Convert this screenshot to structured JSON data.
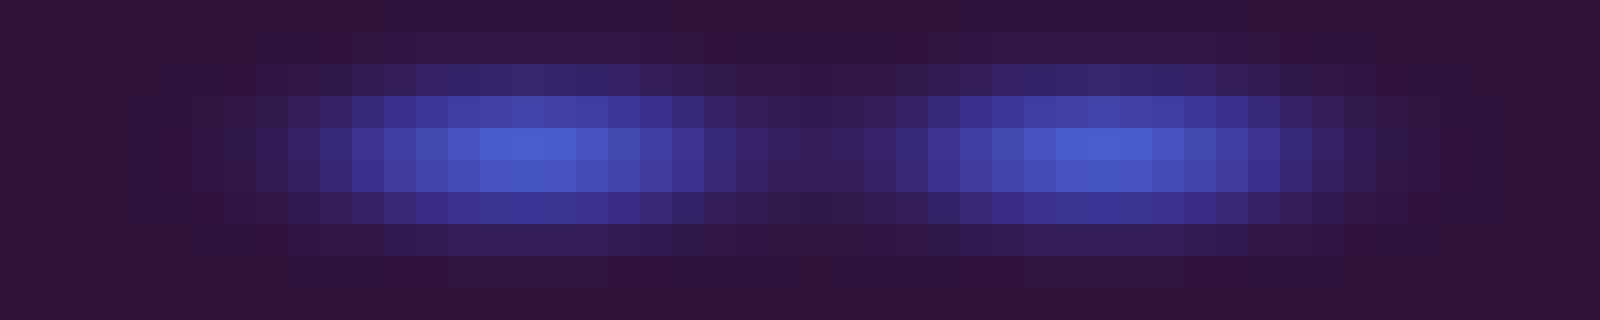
{
  "chart_data": {
    "type": "heatmap",
    "tick_labels": false,
    "zlim": [
      0,
      10
    ],
    "cells": [
      [
        0,
        0,
        0,
        0,
        0,
        0,
        0,
        0,
        0,
        0,
        0,
        0,
        0.1,
        0.1,
        0.1,
        0.1,
        0.1,
        0.1,
        0.1,
        0.1,
        0.1,
        0,
        0,
        0,
        0,
        0,
        0,
        0,
        0,
        0,
        0.1,
        0.1,
        0.1,
        0.1,
        0.1,
        0.1,
        0.1,
        0.1,
        0.1,
        0,
        0,
        0,
        0,
        0,
        0,
        0,
        0,
        0,
        0,
        0
      ],
      [
        0,
        0,
        0,
        0,
        0,
        0,
        0,
        0,
        0.1,
        0.1,
        0.2,
        0.3,
        0.4,
        0.5,
        0.5,
        0.6,
        0.6,
        0.6,
        0.5,
        0.5,
        0.4,
        0.3,
        0.2,
        0.1,
        0.1,
        0.1,
        0.1,
        0.1,
        0.2,
        0.3,
        0.4,
        0.5,
        0.5,
        0.6,
        0.6,
        0.6,
        0.5,
        0.5,
        0.4,
        0.3,
        0.2,
        0.1,
        0.1,
        0,
        0,
        0,
        0,
        0,
        0,
        0
      ],
      [
        0,
        0,
        0,
        0,
        0,
        0.1,
        0.1,
        0.2,
        0.4,
        0.6,
        0.8,
        1.2,
        1.6,
        2.0,
        2.3,
        2.5,
        2.6,
        2.5,
        2.3,
        2.0,
        1.6,
        1.2,
        0.9,
        0.6,
        0.5,
        0.4,
        0.5,
        0.6,
        0.9,
        1.2,
        1.6,
        2.0,
        2.3,
        2.5,
        2.6,
        2.5,
        2.3,
        2.0,
        1.6,
        1.2,
        0.8,
        0.6,
        0.4,
        0.2,
        0.1,
        0.1,
        0,
        0,
        0,
        0
      ],
      [
        0,
        0,
        0,
        0,
        0.1,
        0.1,
        0.3,
        0.5,
        0.9,
        1.4,
        2.1,
        3.0,
        4.0,
        4.9,
        5.7,
        6.3,
        6.5,
        6.3,
        5.7,
        4.9,
        4.0,
        3.1,
        2.1,
        1.6,
        1.2,
        1.0,
        1.2,
        1.6,
        2.1,
        3.1,
        4.0,
        4.9,
        5.7,
        6.3,
        6.5,
        6.3,
        5.7,
        4.9,
        4.0,
        3.0,
        2.1,
        1.4,
        0.9,
        0.5,
        0.3,
        0.1,
        0.1,
        0,
        0,
        0
      ],
      [
        0,
        0,
        0,
        0,
        0.1,
        0.2,
        0.4,
        0.8,
        1.3,
        2.2,
        3.1,
        4.5,
        6.0,
        7.3,
        8.6,
        9.5,
        9.8,
        9.5,
        8.6,
        7.3,
        6.0,
        4.6,
        3.2,
        2.4,
        1.8,
        1.6,
        1.8,
        2.4,
        3.2,
        4.6,
        6.0,
        7.3,
        8.6,
        9.5,
        9.8,
        9.5,
        8.6,
        7.3,
        6.0,
        4.5,
        3.1,
        2.2,
        1.3,
        0.8,
        0.4,
        0.2,
        0.1,
        0,
        0,
        0
      ],
      [
        0,
        0,
        0,
        0,
        0.1,
        0.2,
        0.4,
        0.7,
        1.2,
        1.9,
        2.8,
        4.0,
        5.4,
        6.6,
        7.7,
        8.5,
        8.8,
        8.5,
        7.7,
        6.6,
        5.4,
        4.1,
        2.9,
        2.1,
        1.6,
        1.4,
        1.6,
        2.1,
        2.9,
        4.1,
        5.4,
        6.6,
        7.7,
        8.5,
        8.8,
        8.5,
        7.7,
        6.6,
        5.4,
        4.0,
        2.8,
        1.9,
        1.2,
        0.7,
        0.4,
        0.2,
        0.1,
        0,
        0,
        0
      ],
      [
        0,
        0,
        0,
        0,
        0.1,
        0.1,
        0.2,
        0.4,
        0.6,
        1.1,
        1.5,
        2.2,
        2.9,
        3.6,
        4.2,
        4.7,
        4.8,
        4.7,
        4.2,
        3.6,
        2.9,
        2.3,
        1.6,
        1.2,
        0.9,
        0.8,
        0.9,
        1.2,
        1.6,
        2.3,
        2.9,
        3.6,
        4.2,
        4.7,
        4.8,
        4.7,
        4.2,
        3.6,
        2.9,
        2.2,
        1.5,
        1.1,
        0.6,
        0.4,
        0.2,
        0.1,
        0.1,
        0,
        0,
        0
      ],
      [
        0,
        0,
        0,
        0,
        0,
        0,
        0.1,
        0.1,
        0.2,
        0.4,
        0.5,
        0.7,
        1.0,
        1.2,
        1.4,
        1.6,
        1.6,
        1.6,
        1.4,
        1.2,
        1.0,
        0.8,
        0.5,
        0.4,
        0.3,
        0.3,
        0.3,
        0.4,
        0.5,
        0.8,
        1.0,
        1.2,
        1.4,
        1.6,
        1.6,
        1.6,
        1.4,
        1.2,
        1.0,
        0.7,
        0.5,
        0.4,
        0.2,
        0.1,
        0.1,
        0,
        0,
        0,
        0,
        0
      ],
      [
        0,
        0,
        0,
        0,
        0,
        0,
        0,
        0,
        0,
        0.1,
        0.1,
        0.1,
        0.2,
        0.2,
        0.3,
        0.3,
        0.3,
        0.3,
        0.3,
        0.2,
        0.2,
        0.1,
        0.1,
        0.1,
        0.1,
        0,
        0.1,
        0.1,
        0.1,
        0.1,
        0.2,
        0.2,
        0.3,
        0.3,
        0.3,
        0.3,
        0.3,
        0.2,
        0.2,
        0.1,
        0.1,
        0.1,
        0,
        0,
        0,
        0,
        0,
        0,
        0,
        0
      ],
      [
        0,
        0,
        0,
        0,
        0,
        0,
        0,
        0,
        0,
        0,
        0,
        0,
        0,
        0,
        0,
        0,
        0,
        0,
        0,
        0,
        0,
        0,
        0,
        0,
        0,
        0,
        0,
        0,
        0,
        0,
        0,
        0,
        0,
        0,
        0,
        0,
        0,
        0,
        0,
        0,
        0,
        0,
        0,
        0,
        0,
        0,
        0,
        0,
        0,
        0
      ]
    ]
  }
}
